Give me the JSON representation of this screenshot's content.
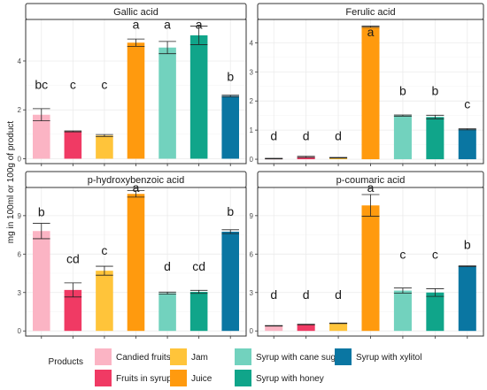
{
  "chart_data": {
    "type": "bar",
    "ylabel": "mg in 100ml or 100g of product",
    "xlabel": "",
    "categories": [
      "Candied fruits",
      "Fruits in syrup",
      "Jam",
      "Juice",
      "Syrup with cane sugar",
      "Syrup with honey",
      "Syrup with xylitol"
    ],
    "colors": [
      "#fbb4c4",
      "#f03a64",
      "#ffc43a",
      "#ff9a0e",
      "#72d2be",
      "#10a58a",
      "#0a76a2"
    ],
    "legend": {
      "title": "Products",
      "position": "bottom",
      "order": [
        0,
        1,
        2,
        3,
        4,
        5,
        6
      ]
    },
    "panels": [
      {
        "title": "Gallic acid",
        "ylim": [
          -0.2,
          5.7
        ],
        "yticks": [
          0,
          2,
          4
        ],
        "values": [
          1.8,
          1.12,
          0.95,
          4.75,
          4.55,
          5.05,
          2.57
        ],
        "errors": [
          0.25,
          0.02,
          0.04,
          0.15,
          0.25,
          0.38,
          0.03
        ],
        "letters": [
          "bc",
          "c",
          "c",
          "a",
          "a",
          "a",
          "b"
        ],
        "letter_y": [
          2.85,
          2.85,
          2.85,
          5.32,
          5.32,
          5.32,
          3.18
        ]
      },
      {
        "title": "Ferulic acid",
        "ylim": [
          -0.15,
          4.8
        ],
        "yticks": [
          0,
          1,
          2,
          3,
          4
        ],
        "values": [
          0.02,
          0.08,
          0.05,
          4.55,
          1.5,
          1.45,
          1.03
        ],
        "errors": [
          0.01,
          0.02,
          0.01,
          0.02,
          0.02,
          0.06,
          0.02
        ],
        "letters": [
          "d",
          "d",
          "d",
          "a",
          "b",
          "b",
          "c"
        ],
        "letter_y": [
          0.65,
          0.65,
          0.65,
          4.23,
          2.2,
          2.2,
          1.75
        ]
      },
      {
        "title": "p-hydroxybenzoic acid",
        "ylim": [
          -0.4,
          11.2
        ],
        "yticks": [
          0,
          3,
          6,
          9
        ],
        "values": [
          7.8,
          3.2,
          4.7,
          10.7,
          2.95,
          3.05,
          7.75
        ],
        "errors": [
          0.6,
          0.55,
          0.35,
          0.25,
          0.08,
          0.12,
          0.15
        ],
        "letters": [
          "b",
          "cd",
          "c",
          "a",
          "d",
          "cd",
          "b"
        ],
        "letter_y": [
          8.95,
          5.3,
          5.95,
          10.85,
          4.7,
          4.7,
          9.0
        ]
      },
      {
        "title": "p-coumaric acid",
        "ylim": [
          -0.4,
          11.2
        ],
        "yticks": [
          0,
          3,
          6,
          9
        ],
        "values": [
          0.4,
          0.5,
          0.6,
          9.8,
          3.15,
          3.0,
          5.05
        ],
        "errors": [
          0.02,
          0.02,
          0.02,
          0.85,
          0.2,
          0.3,
          0.03
        ],
        "letters": [
          "d",
          "d",
          "d",
          "a",
          "c",
          "c",
          "b"
        ],
        "letter_y": [
          2.5,
          2.5,
          2.5,
          10.85,
          5.65,
          5.65,
          6.4
        ]
      }
    ]
  }
}
